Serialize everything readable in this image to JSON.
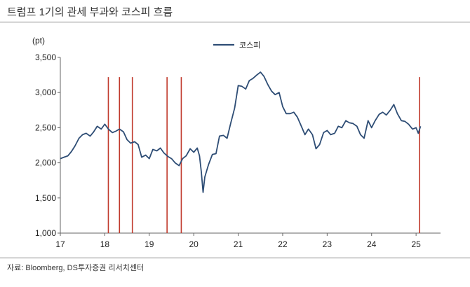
{
  "title": "트럼프 1기의 관세 부과와 코스피 흐름",
  "source": "자료: Bloomberg, DS투자증권 리서치센터",
  "colors": {
    "kospi": "#2e4d75",
    "event": "#c0392b",
    "axis": "#666666",
    "text": "#222222"
  },
  "chart_data": {
    "type": "line",
    "title": "트럼프 1기의 관세 부과와 코스피 흐름",
    "ylabel": "(pt)",
    "xlabel": "",
    "ylim": [
      1000,
      3500
    ],
    "yticks": [
      1000,
      1500,
      2000,
      2500,
      3000,
      3500
    ],
    "ytick_labels": [
      "1,000",
      "1,500",
      "2,000",
      "2,500",
      "3,000",
      "3,500"
    ],
    "xlim": [
      2017,
      2025.55
    ],
    "xticks": [
      2017,
      2018,
      2019,
      2020,
      2021,
      2022,
      2023,
      2024,
      2025
    ],
    "xtick_labels": [
      "17",
      "18",
      "19",
      "20",
      "21",
      "22",
      "23",
      "24",
      "25"
    ],
    "grid": false,
    "legend": {
      "placement": "top-center",
      "entries": [
        "코스피"
      ]
    },
    "vertical_markers": [
      2018.08,
      2018.33,
      2018.62,
      2019.4,
      2019.72,
      2025.08
    ],
    "series": [
      {
        "name": "코스피",
        "x": [
          2017.0,
          2017.08,
          2017.17,
          2017.25,
          2017.33,
          2017.42,
          2017.5,
          2017.58,
          2017.67,
          2017.75,
          2017.83,
          2017.92,
          2018.0,
          2018.08,
          2018.17,
          2018.25,
          2018.33,
          2018.42,
          2018.5,
          2018.58,
          2018.67,
          2018.75,
          2018.83,
          2018.92,
          2019.0,
          2019.08,
          2019.17,
          2019.25,
          2019.33,
          2019.42,
          2019.5,
          2019.58,
          2019.67,
          2019.75,
          2019.83,
          2019.92,
          2020.0,
          2020.08,
          2020.13,
          2020.17,
          2020.21,
          2020.25,
          2020.33,
          2020.42,
          2020.5,
          2020.58,
          2020.67,
          2020.75,
          2020.83,
          2020.92,
          2021.0,
          2021.08,
          2021.17,
          2021.25,
          2021.33,
          2021.42,
          2021.5,
          2021.58,
          2021.67,
          2021.75,
          2021.83,
          2021.92,
          2022.0,
          2022.08,
          2022.17,
          2022.25,
          2022.33,
          2022.42,
          2022.5,
          2022.58,
          2022.67,
          2022.75,
          2022.83,
          2022.92,
          2023.0,
          2023.08,
          2023.17,
          2023.25,
          2023.33,
          2023.42,
          2023.5,
          2023.58,
          2023.67,
          2023.75,
          2023.83,
          2023.92,
          2024.0,
          2024.08,
          2024.17,
          2024.25,
          2024.33,
          2024.42,
          2024.5,
          2024.58,
          2024.67,
          2024.75,
          2024.83,
          2024.92,
          2025.0,
          2025.05,
          2025.1
        ],
        "values": [
          2060,
          2080,
          2100,
          2160,
          2240,
          2350,
          2400,
          2420,
          2380,
          2440,
          2520,
          2480,
          2550,
          2480,
          2430,
          2450,
          2480,
          2440,
          2330,
          2280,
          2300,
          2260,
          2080,
          2110,
          2060,
          2190,
          2170,
          2210,
          2140,
          2090,
          2060,
          2000,
          1960,
          2060,
          2100,
          2200,
          2150,
          2210,
          2100,
          1870,
          1580,
          1800,
          1970,
          2120,
          2130,
          2380,
          2390,
          2350,
          2560,
          2780,
          3100,
          3090,
          3050,
          3170,
          3200,
          3250,
          3290,
          3230,
          3110,
          3020,
          2970,
          3000,
          2800,
          2700,
          2700,
          2720,
          2650,
          2520,
          2400,
          2480,
          2400,
          2200,
          2260,
          2430,
          2460,
          2400,
          2420,
          2520,
          2500,
          2600,
          2570,
          2560,
          2520,
          2400,
          2350,
          2600,
          2500,
          2600,
          2690,
          2720,
          2680,
          2750,
          2830,
          2700,
          2600,
          2590,
          2550,
          2480,
          2500,
          2420,
          2520
        ]
      }
    ]
  }
}
